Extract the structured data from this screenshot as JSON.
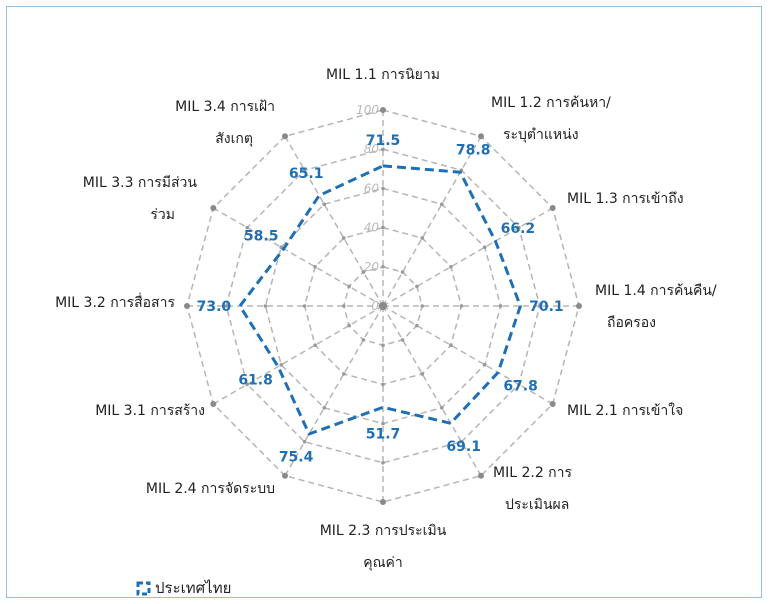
{
  "chart_data": {
    "type": "radar",
    "title": "",
    "r_ticks": [
      0,
      20,
      40,
      60,
      80,
      100
    ],
    "r_range": [
      0,
      100
    ],
    "grid": true,
    "legend_position": "bottom-left",
    "axes": [
      {
        "label": [
          "MIL 1.1 การนิยาม"
        ]
      },
      {
        "label": [
          "MIL 1.2 การค้นหา/",
          "ระบุตำแหน่ง"
        ]
      },
      {
        "label": [
          "MIL 1.3 การเข้าถึง"
        ]
      },
      {
        "label": [
          "MIL 1.4 การค้นคืน/",
          "ถือครอง"
        ]
      },
      {
        "label": [
          "MIL 2.1 การเข้าใจ"
        ]
      },
      {
        "label": [
          "MIL 2.2 การ",
          "ประเมินผล"
        ]
      },
      {
        "label": [
          "MIL 2.3 การประเมิน",
          "คุณค่า"
        ]
      },
      {
        "label": [
          "MIL 2.4 การจัดระบบ"
        ]
      },
      {
        "label": [
          "MIL 3.1 การสร้าง"
        ]
      },
      {
        "label": [
          "MIL 3.2 การสื่อสาร"
        ]
      },
      {
        "label": [
          "MIL 3.3 การมีส่วน",
          "ร่วม"
        ]
      },
      {
        "label": [
          "MIL 3.4 การเฝ้า",
          "สังเกตุ"
        ]
      }
    ],
    "series": [
      {
        "name": "ประเทศไทย",
        "color": "#1f6fb4",
        "values": [
          71.5,
          78.8,
          66.2,
          70.1,
          67.8,
          69.1,
          51.7,
          75.4,
          61.8,
          73.0,
          58.5,
          65.1
        ],
        "value_labels": [
          "71.5",
          "78.8",
          "66.2",
          "70.1",
          "67.8",
          "69.1",
          "51.7",
          "75.4",
          "61.8",
          "73.0",
          "58.5",
          "65.1"
        ]
      }
    ]
  },
  "colors": {
    "grid": "#b5b5b5",
    "series": "#1f6fb4",
    "frame": "#8ec3e6"
  }
}
